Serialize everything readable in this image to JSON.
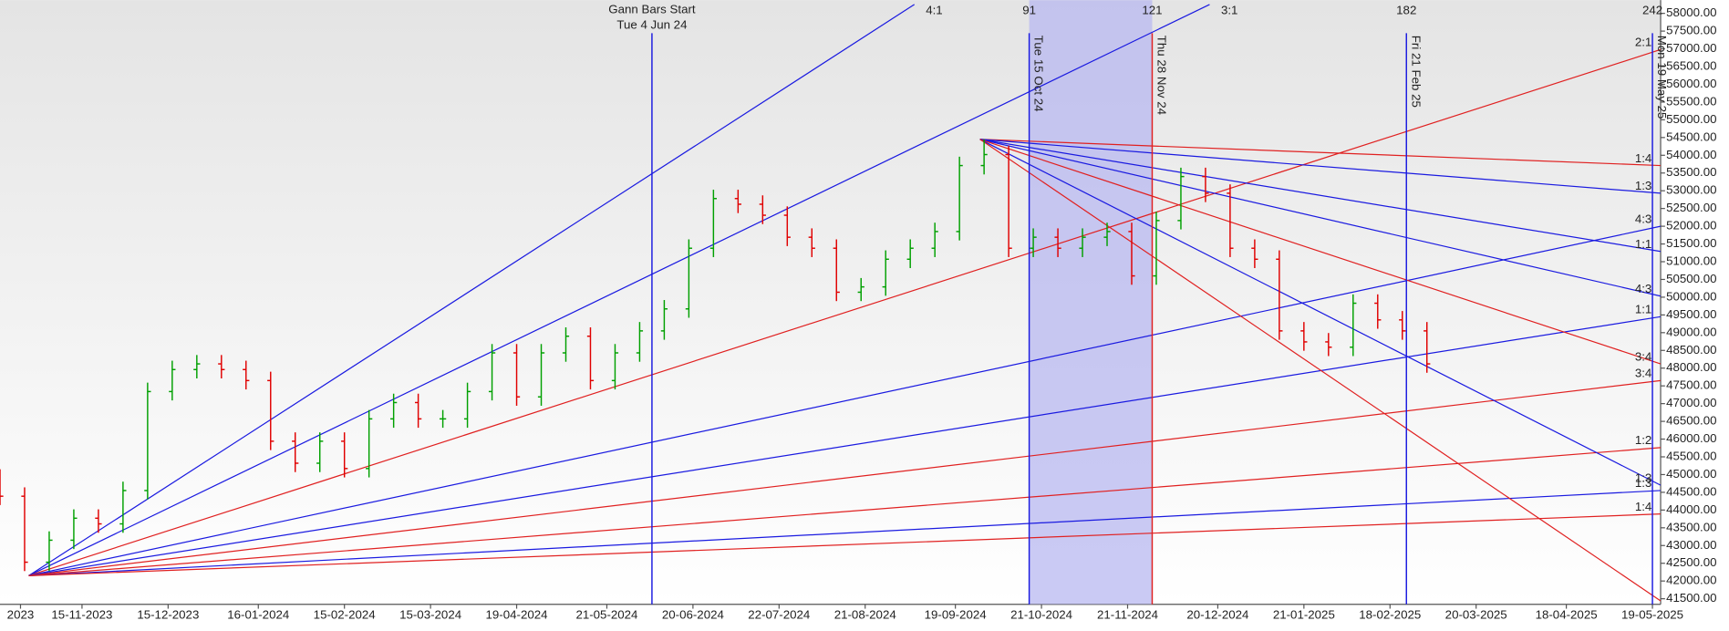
{
  "chart_data": {
    "type": "ohlc",
    "x": [
      0,
      6,
      12,
      18,
      24,
      30,
      36,
      42,
      48,
      54,
      60,
      66,
      72,
      78,
      84,
      90,
      96,
      102,
      108,
      114,
      120,
      126,
      132,
      138,
      144,
      150,
      156,
      162,
      168,
      174,
      180,
      186,
      192,
      198,
      204,
      210,
      216,
      222,
      228,
      234,
      240,
      246,
      252,
      258,
      264,
      270,
      276,
      282,
      288,
      294,
      300,
      306,
      312,
      318,
      324,
      330,
      336,
      342,
      348
    ],
    "open": [
      44900,
      44390,
      42530,
      43150,
      43770,
      43610,
      44550,
      47340,
      47960,
      48120,
      47960,
      47650,
      45940,
      45320,
      45940,
      45170,
      46570,
      47030,
      46570,
      46570,
      47340,
      48430,
      47190,
      48430,
      48900,
      47650,
      48430,
      49050,
      49670,
      51380,
      52780,
      52620,
      52310,
      51690,
      51380,
      50140,
      50290,
      51070,
      51380,
      51850,
      53710,
      54020,
      51380,
      51690,
      51380,
      51690,
      51850,
      50600,
      52160,
      53400,
      52930,
      51380,
      51070,
      49050,
      48740,
      48590,
      49830,
      49360,
      49050
    ],
    "high": [
      45150,
      44640,
      43400,
      44020,
      44020,
      44800,
      47590,
      48210,
      48370,
      48370,
      48210,
      47900,
      46190,
      46190,
      46190,
      46820,
      47280,
      47280,
      46820,
      47590,
      48680,
      48680,
      48680,
      49150,
      49150,
      48680,
      49300,
      49920,
      51630,
      53030,
      53030,
      52870,
      52560,
      51940,
      51630,
      50540,
      51320,
      51630,
      52100,
      53960,
      54450,
      54270,
      51940,
      51940,
      51940,
      52100,
      52100,
      52410,
      53650,
      53650,
      53180,
      51630,
      51320,
      49300,
      48990,
      50080,
      50080,
      49610,
      49300
    ],
    "low": [
      44140,
      42280,
      42280,
      42900,
      43360,
      43360,
      44300,
      47090,
      47710,
      47710,
      47400,
      45690,
      45070,
      45070,
      44920,
      44920,
      46320,
      46320,
      46320,
      46320,
      47090,
      46940,
      46940,
      48180,
      47400,
      47400,
      48180,
      48800,
      49420,
      51130,
      52370,
      52060,
      51440,
      51130,
      49890,
      49890,
      50040,
      50820,
      51130,
      51600,
      53460,
      51130,
      51130,
      51130,
      51130,
      51440,
      50350,
      50350,
      51910,
      52680,
      51130,
      50820,
      48800,
      48490,
      48340,
      48340,
      49110,
      48800,
      47870
    ],
    "close": [
      44390,
      42530,
      43150,
      43770,
      43610,
      44550,
      47340,
      47960,
      48120,
      47960,
      47650,
      45940,
      45320,
      45940,
      45170,
      46570,
      47030,
      46570,
      46570,
      47340,
      48430,
      47190,
      48430,
      48900,
      47650,
      48430,
      49050,
      49670,
      51380,
      52780,
      52620,
      52310,
      51690,
      51380,
      50140,
      50290,
      51070,
      51380,
      51850,
      53710,
      54020,
      51380,
      51690,
      51380,
      51690,
      51850,
      50600,
      52160,
      53400,
      52930,
      51380,
      51070,
      49050,
      48740,
      48590,
      49830,
      49360,
      49050,
      48120
    ],
    "up_color": "#00a000",
    "down_color": "#e00000",
    "xlim": [
      0,
      405
    ],
    "ylim": [
      41250,
      58250
    ],
    "xticks": [
      {
        "value": 5,
        "label": "2023"
      },
      {
        "value": 20,
        "label": "15-11-2023"
      },
      {
        "value": 41,
        "label": "15-12-2023"
      },
      {
        "value": 63,
        "label": "16-01-2024"
      },
      {
        "value": 84,
        "label": "15-02-2024"
      },
      {
        "value": 105,
        "label": "15-03-2024"
      },
      {
        "value": 126,
        "label": "19-04-2024"
      },
      {
        "value": 148,
        "label": "21-05-2024"
      },
      {
        "value": 169,
        "label": "20-06-2024"
      },
      {
        "value": 190,
        "label": "22-07-2024"
      },
      {
        "value": 211,
        "label": "21-08-2024"
      },
      {
        "value": 233,
        "label": "19-09-2024"
      },
      {
        "value": 254,
        "label": "21-10-2024"
      },
      {
        "value": 275,
        "label": "21-11-2024"
      },
      {
        "value": 297,
        "label": "20-12-2024"
      },
      {
        "value": 318,
        "label": "21-01-2025"
      },
      {
        "value": 339,
        "label": "18-02-2025"
      },
      {
        "value": 360,
        "label": "20-03-2025"
      },
      {
        "value": 382,
        "label": "18-04-2025"
      },
      {
        "value": 403,
        "label": "19-05-2025"
      }
    ],
    "yticks": [
      {
        "value": 41500,
        "label": "41500.00"
      },
      {
        "value": 42000,
        "label": "42000.00"
      },
      {
        "value": 42500,
        "label": "42500.00"
      },
      {
        "value": 43000,
        "label": "43000.00"
      },
      {
        "value": 43500,
        "label": "43500.00"
      },
      {
        "value": 44000,
        "label": "44000.00"
      },
      {
        "value": 44500,
        "label": "44500.00"
      },
      {
        "value": 45000,
        "label": "45000.00"
      },
      {
        "value": 45500,
        "label": "45500.00"
      },
      {
        "value": 46000,
        "label": "46000.00"
      },
      {
        "value": 46500,
        "label": "46500.00"
      },
      {
        "value": 47000,
        "label": "47000.00"
      },
      {
        "value": 47500,
        "label": "47500.00"
      },
      {
        "value": 48000,
        "label": "48000.00"
      },
      {
        "value": 48500,
        "label": "48500.00"
      },
      {
        "value": 49000,
        "label": "49000.00"
      },
      {
        "value": 49500,
        "label": "49500.00"
      },
      {
        "value": 50000,
        "label": "50000.00"
      },
      {
        "value": 50500,
        "label": "50500.00"
      },
      {
        "value": 51000,
        "label": "51000.00"
      },
      {
        "value": 51500,
        "label": "51500.00"
      },
      {
        "value": 52000,
        "label": "52000.00"
      },
      {
        "value": 52500,
        "label": "52500.00"
      },
      {
        "value": 53000,
        "label": "53000.00"
      },
      {
        "value": 53500,
        "label": "53500.00"
      },
      {
        "value": 54000,
        "label": "54000.00"
      },
      {
        "value": 54500,
        "label": "54500.00"
      },
      {
        "value": 55000,
        "label": "55000.00"
      },
      {
        "value": 55500,
        "label": "55500.00"
      },
      {
        "value": 56000,
        "label": "56000.00"
      },
      {
        "value": 56500,
        "label": "56500.00"
      },
      {
        "value": 57000,
        "label": "57000.00"
      },
      {
        "value": 57500,
        "label": "57500.00"
      },
      {
        "value": 58000,
        "label": "58000.00"
      }
    ],
    "fan_lines": [
      {
        "label": "4:1",
        "color": "#1a1ae0",
        "x": [
          7,
          223
        ],
        "values": [
          42150,
          58250
        ]
      },
      {
        "label": "3:1",
        "color": "#1a1ae0",
        "x": [
          7,
          295
        ],
        "values": [
          42150,
          58250
        ]
      },
      {
        "label": "2:1",
        "color": "#e02020",
        "x": [
          7,
          405
        ],
        "values": [
          42150,
          56980
        ]
      },
      {
        "label": "4:3",
        "color": "#1a1ae0",
        "x": [
          7,
          405
        ],
        "values": [
          42150,
          52000
        ]
      },
      {
        "label": "1:1",
        "color": "#1a1ae0",
        "x": [
          7,
          405
        ],
        "values": [
          42150,
          49450
        ]
      },
      {
        "label": "3:4",
        "color": "#e02020",
        "x": [
          7,
          405
        ],
        "values": [
          42150,
          47650
        ]
      },
      {
        "label": "1:2",
        "color": "#e02020",
        "x": [
          7,
          405
        ],
        "values": [
          42150,
          45760
        ]
      },
      {
        "label": "1:3",
        "color": "#1a1ae0",
        "x": [
          7,
          405
        ],
        "values": [
          42150,
          44550
        ]
      },
      {
        "label": "1:4",
        "color": "#e02020",
        "x": [
          7,
          405
        ],
        "values": [
          42150,
          43890
        ]
      },
      {
        "label": "1:4",
        "color": "#e02020",
        "x": [
          239,
          405
        ],
        "values": [
          54450,
          53710
        ]
      },
      {
        "label": "1:3",
        "color": "#1a1ae0",
        "x": [
          239,
          405
        ],
        "values": [
          54450,
          52930
        ]
      },
      {
        "label": "1:1",
        "color": "#1a1ae0",
        "x": [
          239,
          405
        ],
        "values": [
          54450,
          51290
        ]
      },
      {
        "label": "4:3",
        "color": "#1a1ae0",
        "x": [
          239,
          405
        ],
        "values": [
          54450,
          50030
        ]
      },
      {
        "label": "3:4",
        "color": "#e02020",
        "x": [
          239,
          405
        ],
        "values": [
          54450,
          48120
        ]
      },
      {
        "label": "1:3",
        "color": "#1a1ae0",
        "x": [
          239,
          405
        ],
        "values": [
          54450,
          44700
        ]
      },
      {
        "color": "#e02020",
        "x": [
          239,
          405
        ],
        "values": [
          54450,
          41440
        ]
      }
    ],
    "vlines": [
      {
        "x": 159,
        "color": "#1a1ae0",
        "title": [
          "Gann Bars Start",
          "Tue 4 Jun 24"
        ]
      },
      {
        "x": 251,
        "color": "#1a1ae0",
        "count": "91",
        "date": "Tue 15 Oct 24"
      },
      {
        "x": 281,
        "color": "#e02020",
        "count": "121",
        "date": "Thu 28 Nov 24"
      },
      {
        "x": 343,
        "color": "#1a1ae0",
        "count": "182",
        "date": "Fri 21 Feb 25"
      },
      {
        "x": 403,
        "color": "#1a1ae0",
        "count": "242",
        "date": "Mon 19 May 25"
      }
    ],
    "shade": {
      "x": [
        251,
        281
      ],
      "color": "#b8b8f0"
    }
  }
}
